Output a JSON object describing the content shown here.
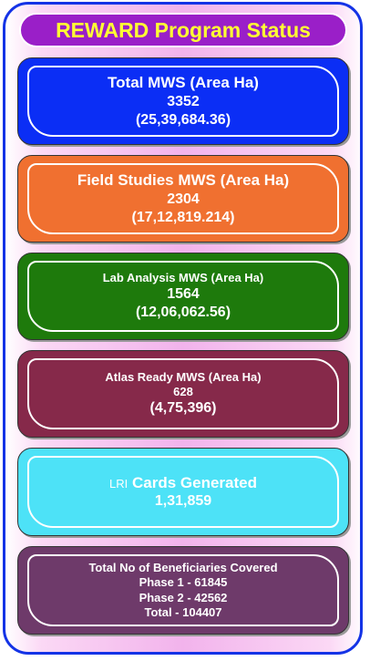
{
  "title": "REWARD Program Status",
  "cards": [
    {
      "label": "Total MWS (Area Ha)",
      "count": "3352",
      "area": "(25,39,684.36)",
      "color": "#0b2ef5"
    },
    {
      "label": "Field Studies MWS (Area Ha)",
      "count": "2304",
      "area": "(17,12,819.214)",
      "color": "#f07030"
    },
    {
      "label": "Lab Analysis MWS (Area Ha)",
      "count": "1564",
      "area": "(12,06,062.56)",
      "color": "#1e7a0c"
    },
    {
      "label": "Atlas Ready MWS (Area Ha)",
      "count": "628",
      "area": "(4,75,396)",
      "color": "#86294a"
    },
    {
      "prefix": "LRI",
      "label": "Cards Generated",
      "count": "1,31,859",
      "color": "#4de2f7"
    },
    {
      "label": "Total No of Beneficiaries Covered",
      "phase1": "Phase 1 -  61845",
      "phase2": "Phase 2 -  42562",
      "total": "Total - 104407",
      "color": "#6e3a6a"
    }
  ]
}
